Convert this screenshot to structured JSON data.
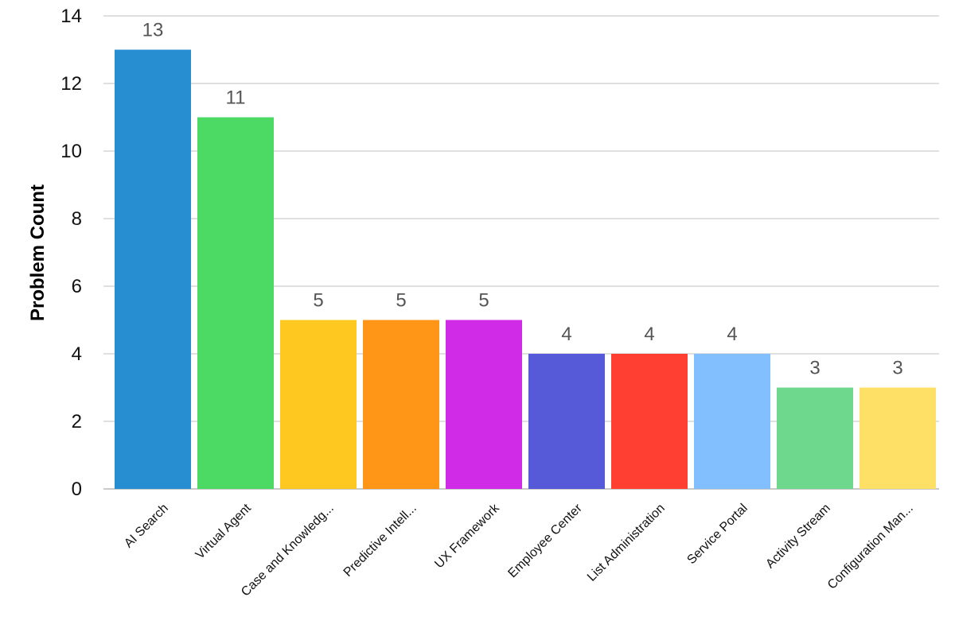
{
  "chart_data": {
    "type": "bar",
    "title": "",
    "xlabel": "",
    "ylabel": "Problem Count",
    "ylim": [
      0,
      14
    ],
    "yticks": [
      0,
      2,
      4,
      6,
      8,
      10,
      12,
      14
    ],
    "grid": true,
    "legend": "none",
    "categories": [
      "AI Search",
      "Virtual Agent",
      "Case and Knowledg...",
      "Predictive Intell...",
      "UX Framework",
      "Employee Center",
      "List Administration",
      "Service Portal",
      "Activity Stream",
      "Configuration Man..."
    ],
    "values": [
      13,
      11,
      5,
      5,
      5,
      4,
      4,
      4,
      3,
      3
    ],
    "colors": [
      "#278ED2",
      "#4CD964",
      "#FFC821",
      "#FF9617",
      "#D02BE6",
      "#565AD8",
      "#FF3F32",
      "#82BFFF",
      "#6ED98C",
      "#FFE066"
    ],
    "data_labels": true
  }
}
